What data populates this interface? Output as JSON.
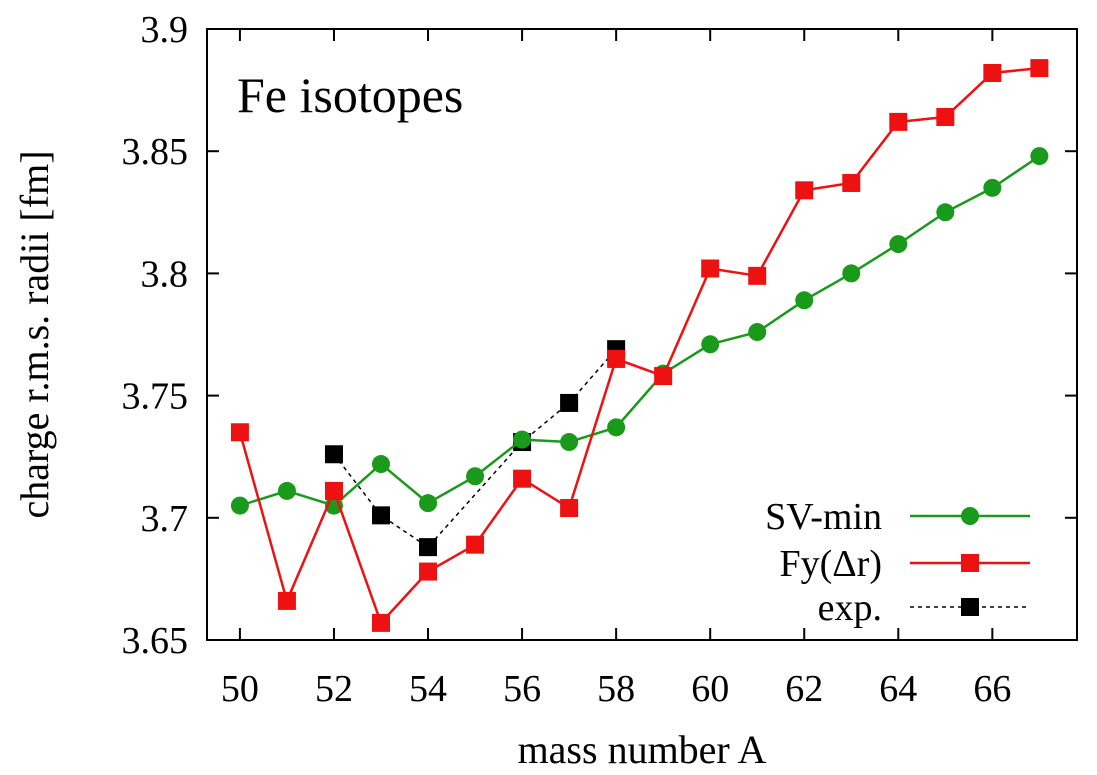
{
  "chart_data": {
    "type": "line",
    "title": "Fe isotopes",
    "xlabel": "mass number A",
    "ylabel": "charge r.m.s. radii [fm]",
    "xlim": [
      49.3,
      67.8
    ],
    "ylim": [
      3.65,
      3.9
    ],
    "x_ticks": [
      50,
      52,
      54,
      56,
      58,
      60,
      62,
      64,
      66
    ],
    "x_tick_labels": [
      "50",
      "52",
      "54",
      "56",
      "58",
      "60",
      "62",
      "64",
      "66"
    ],
    "y_ticks": [
      3.65,
      3.7,
      3.75,
      3.8,
      3.85,
      3.9
    ],
    "y_tick_labels": [
      "3.65",
      "3.7",
      "3.75",
      "3.8",
      "3.85",
      "3.9"
    ],
    "grid": false,
    "legend_position": "bottom-right",
    "series": [
      {
        "name": "SV-min",
        "color": "#1a9a1a",
        "marker": "circle",
        "line_style": "solid",
        "x": [
          50,
          51,
          52,
          53,
          54,
          55,
          56,
          57,
          58,
          59,
          60,
          61,
          62,
          63,
          64,
          65,
          66,
          67
        ],
        "y": [
          3.705,
          3.711,
          3.705,
          3.722,
          3.706,
          3.717,
          3.732,
          3.731,
          3.737,
          3.759,
          3.771,
          3.776,
          3.789,
          3.8,
          3.812,
          3.825,
          3.835,
          3.848
        ]
      },
      {
        "name": "Fy(Δr)",
        "color": "#ee1111",
        "marker": "square",
        "line_style": "solid",
        "x": [
          50,
          51,
          52,
          53,
          54,
          55,
          56,
          57,
          58,
          59,
          60,
          61,
          62,
          63,
          64,
          65,
          66,
          67
        ],
        "y": [
          3.735,
          3.666,
          3.711,
          3.657,
          3.678,
          3.689,
          3.716,
          3.704,
          3.765,
          3.758,
          3.802,
          3.799,
          3.834,
          3.837,
          3.862,
          3.864,
          3.882,
          3.884
        ]
      },
      {
        "name": "exp.",
        "color": "#000000",
        "marker": "square",
        "line_style": "dotted",
        "x": [
          52,
          53,
          54,
          56,
          57,
          58
        ],
        "y": [
          3.726,
          3.701,
          3.688,
          3.731,
          3.747,
          3.769
        ]
      }
    ]
  }
}
